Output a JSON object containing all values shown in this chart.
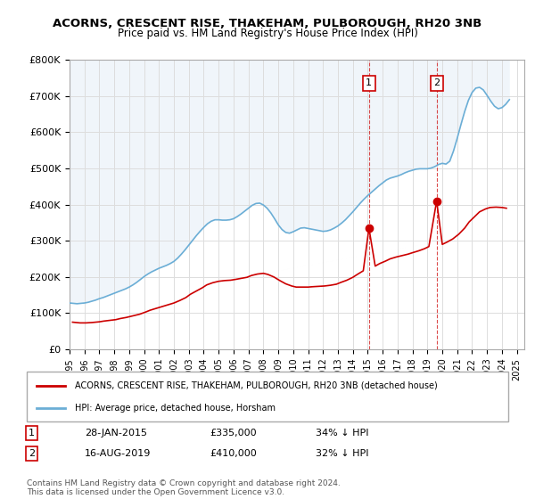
{
  "title": "ACORNS, CRESCENT RISE, THAKEHAM, PULBOROUGH, RH20 3NB",
  "subtitle": "Price paid vs. HM Land Registry's House Price Index (HPI)",
  "ylabel": "",
  "xlabel": "",
  "ylim": [
    0,
    800000
  ],
  "yticks": [
    0,
    100000,
    200000,
    300000,
    400000,
    500000,
    600000,
    700000,
    800000
  ],
  "ytick_labels": [
    "£0",
    "£100K",
    "£200K",
    "£300K",
    "£400K",
    "£500K",
    "£600K",
    "£700K",
    "£800K"
  ],
  "xlim_start": 1995.0,
  "xlim_end": 2025.5,
  "background_color": "#ffffff",
  "plot_bg_color": "#ffffff",
  "grid_color": "#dddddd",
  "hpi_color": "#6baed6",
  "hpi_fill_color": "#c6dbef",
  "house_color": "#cc0000",
  "sale1_date": 2015.08,
  "sale1_price": 335000,
  "sale2_date": 2019.62,
  "sale2_price": 410000,
  "legend_house": "ACORNS, CRESCENT RISE, THAKEHAM, PULBOROUGH, RH20 3NB (detached house)",
  "legend_hpi": "HPI: Average price, detached house, Horsham",
  "annotation1": "28-JAN-2015",
  "annotation1_price": "£335,000",
  "annotation1_pct": "34% ↓ HPI",
  "annotation2": "16-AUG-2019",
  "annotation2_price": "£410,000",
  "annotation2_pct": "32% ↓ HPI",
  "footer": "Contains HM Land Registry data © Crown copyright and database right 2024.\nThis data is licensed under the Open Government Licence v3.0.",
  "hpi_x": [
    1995.0,
    1995.25,
    1995.5,
    1995.75,
    1996.0,
    1996.25,
    1996.5,
    1996.75,
    1997.0,
    1997.25,
    1997.5,
    1997.75,
    1998.0,
    1998.25,
    1998.5,
    1998.75,
    1999.0,
    1999.25,
    1999.5,
    1999.75,
    2000.0,
    2000.25,
    2000.5,
    2000.75,
    2001.0,
    2001.25,
    2001.5,
    2001.75,
    2002.0,
    2002.25,
    2002.5,
    2002.75,
    2003.0,
    2003.25,
    2003.5,
    2003.75,
    2004.0,
    2004.25,
    2004.5,
    2004.75,
    2005.0,
    2005.25,
    2005.5,
    2005.75,
    2006.0,
    2006.25,
    2006.5,
    2006.75,
    2007.0,
    2007.25,
    2007.5,
    2007.75,
    2008.0,
    2008.25,
    2008.5,
    2008.75,
    2009.0,
    2009.25,
    2009.5,
    2009.75,
    2010.0,
    2010.25,
    2010.5,
    2010.75,
    2011.0,
    2011.25,
    2011.5,
    2011.75,
    2012.0,
    2012.25,
    2012.5,
    2012.75,
    2013.0,
    2013.25,
    2013.5,
    2013.75,
    2014.0,
    2014.25,
    2014.5,
    2014.75,
    2015.0,
    2015.25,
    2015.5,
    2015.75,
    2016.0,
    2016.25,
    2016.5,
    2016.75,
    2017.0,
    2017.25,
    2017.5,
    2017.75,
    2018.0,
    2018.25,
    2018.5,
    2018.75,
    2019.0,
    2019.25,
    2019.5,
    2019.75,
    2020.0,
    2020.25,
    2020.5,
    2020.75,
    2021.0,
    2021.25,
    2021.5,
    2021.75,
    2022.0,
    2022.25,
    2022.5,
    2022.75,
    2023.0,
    2023.25,
    2023.5,
    2023.75,
    2024.0,
    2024.25,
    2024.5
  ],
  "hpi_y": [
    128000,
    127000,
    126000,
    127000,
    128000,
    130000,
    133000,
    136000,
    140000,
    143000,
    147000,
    151000,
    155000,
    159000,
    163000,
    167000,
    172000,
    178000,
    185000,
    193000,
    201000,
    208000,
    214000,
    219000,
    224000,
    228000,
    232000,
    237000,
    243000,
    252000,
    263000,
    275000,
    288000,
    301000,
    314000,
    326000,
    337000,
    347000,
    354000,
    358000,
    358000,
    357000,
    357000,
    358000,
    361000,
    367000,
    374000,
    382000,
    390000,
    398000,
    403000,
    404000,
    399000,
    390000,
    377000,
    361000,
    344000,
    331000,
    323000,
    321000,
    325000,
    330000,
    335000,
    336000,
    334000,
    332000,
    330000,
    328000,
    326000,
    327000,
    330000,
    335000,
    341000,
    349000,
    358000,
    369000,
    380000,
    392000,
    404000,
    415000,
    425000,
    434000,
    443000,
    452000,
    460000,
    468000,
    473000,
    476000,
    479000,
    483000,
    488000,
    492000,
    495000,
    498000,
    499000,
    499000,
    499000,
    501000,
    505000,
    511000,
    514000,
    512000,
    520000,
    548000,
    583000,
    621000,
    657000,
    688000,
    710000,
    722000,
    724000,
    717000,
    702000,
    686000,
    672000,
    665000,
    668000,
    677000,
    690000
  ],
  "house_x": [
    1995.2,
    1995.7,
    1996.1,
    1996.5,
    1997.0,
    1997.3,
    1997.7,
    1998.1,
    1998.4,
    1998.8,
    1999.2,
    1999.7,
    2000.1,
    2000.4,
    2000.8,
    2001.2,
    2001.6,
    2002.0,
    2002.4,
    2002.8,
    2003.1,
    2003.5,
    2003.9,
    2004.2,
    2004.6,
    2005.0,
    2005.4,
    2005.8,
    2006.1,
    2006.5,
    2006.9,
    2007.2,
    2007.6,
    2008.0,
    2008.3,
    2008.7,
    2009.1,
    2009.5,
    2009.9,
    2010.2,
    2010.6,
    2011.0,
    2011.3,
    2011.7,
    2012.1,
    2012.5,
    2012.9,
    2013.2,
    2013.6,
    2014.0,
    2014.3,
    2014.7,
    2015.08,
    2015.5,
    2015.8,
    2016.2,
    2016.5,
    2016.9,
    2017.3,
    2017.7,
    2018.0,
    2018.4,
    2018.8,
    2019.1,
    2019.62,
    2020.0,
    2020.3,
    2020.7,
    2021.1,
    2021.5,
    2021.8,
    2022.2,
    2022.5,
    2022.9,
    2023.2,
    2023.6,
    2024.0,
    2024.3
  ],
  "house_y": [
    75000,
    73000,
    73000,
    74000,
    76000,
    78000,
    80000,
    82000,
    85000,
    88000,
    92000,
    97000,
    103000,
    108000,
    113000,
    118000,
    123000,
    128000,
    135000,
    143000,
    152000,
    161000,
    170000,
    178000,
    184000,
    188000,
    190000,
    191000,
    193000,
    196000,
    199000,
    204000,
    208000,
    210000,
    207000,
    200000,
    190000,
    181000,
    175000,
    172000,
    172000,
    172000,
    173000,
    174000,
    175000,
    177000,
    180000,
    185000,
    191000,
    199000,
    207000,
    217000,
    335000,
    230000,
    237000,
    244000,
    250000,
    255000,
    259000,
    263000,
    267000,
    272000,
    278000,
    284000,
    410000,
    290000,
    296000,
    305000,
    318000,
    335000,
    352000,
    368000,
    380000,
    388000,
    392000,
    393000,
    392000,
    390000
  ]
}
